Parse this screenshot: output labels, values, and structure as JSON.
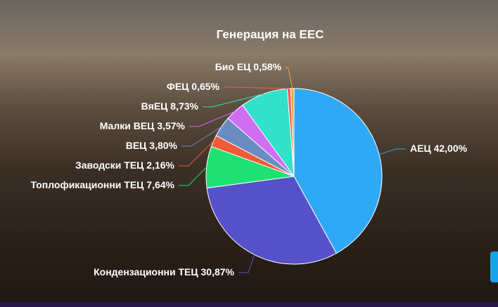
{
  "chart_data": {
    "type": "pie",
    "title": "Генерация на ЕЕС",
    "categories": [
      "АЕЦ",
      "Кондензационни ТЕЦ",
      "Топлофикационни ТЕЦ",
      "Заводски ТЕЦ",
      "ВЕЦ",
      "Малки ВЕЦ",
      "ВяЕЦ",
      "ФЕЦ",
      "Био ЕЦ"
    ],
    "values": [
      42.0,
      30.87,
      7.64,
      2.16,
      3.8,
      3.57,
      8.73,
      0.65,
      0.58
    ],
    "value_labels": [
      "42,00%",
      "30,87%",
      "7,64%",
      "2,16%",
      "3,80%",
      "3,57%",
      "8,73%",
      "0,65%",
      "0,58%"
    ],
    "colors": [
      "#2fa9f6",
      "#5651c9",
      "#1fe072",
      "#f25a38",
      "#6b8cc2",
      "#d06ef2",
      "#33e0c9",
      "#f2614e",
      "#f2a23c"
    ]
  }
}
